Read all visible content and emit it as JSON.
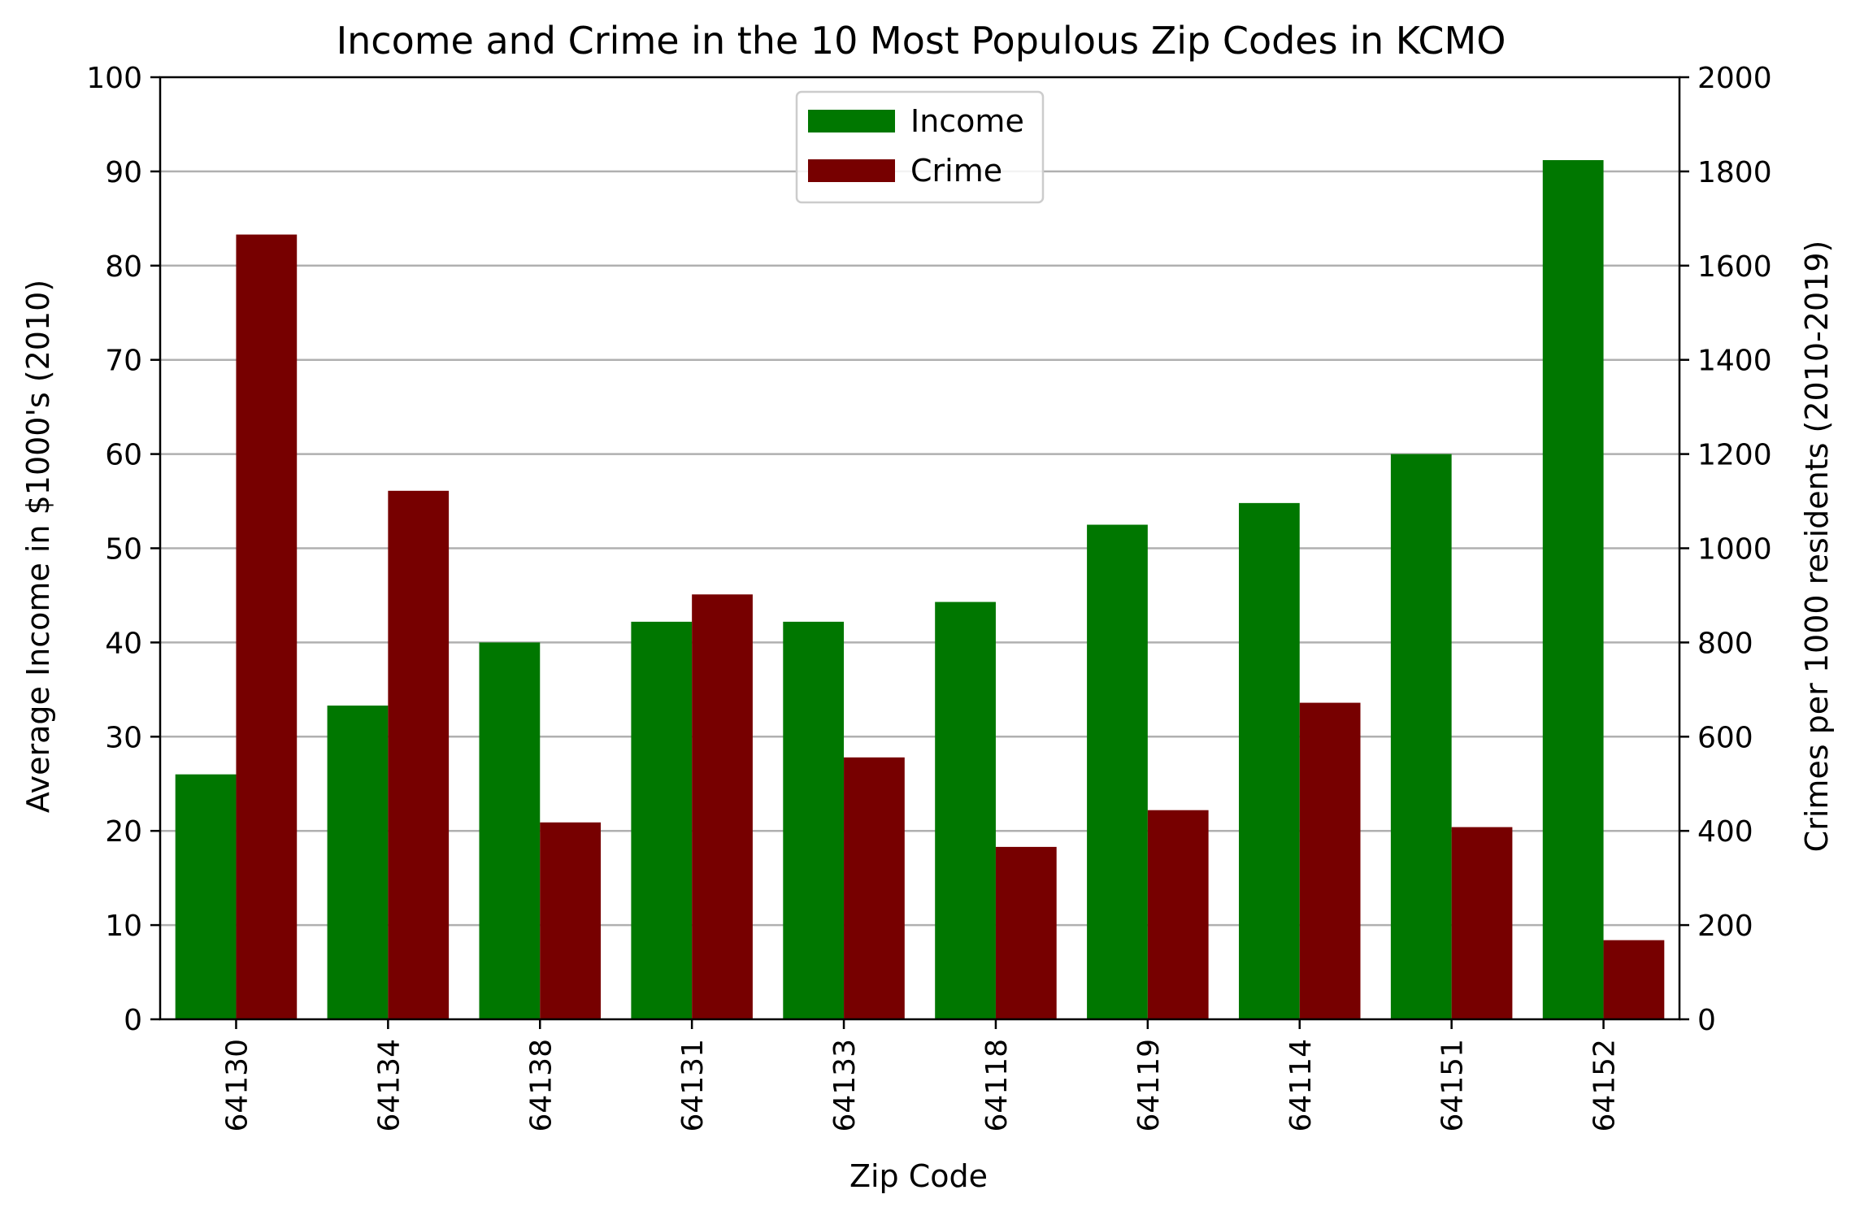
{
  "chart_data": {
    "type": "bar",
    "title": "Income and Crime in the 10 Most Populous Zip Codes in KCMO",
    "xlabel": "Zip Code",
    "ylabel_left": "Average Income in $1000's (2010)",
    "ylabel_right": "Crimes per 1000 residents (2010-2019)",
    "categories": [
      "64130",
      "64134",
      "64138",
      "64131",
      "64133",
      "64118",
      "64119",
      "64114",
      "64151",
      "64152"
    ],
    "ylim_left": [
      0,
      100
    ],
    "ylim_right": [
      0,
      2000
    ],
    "yticks_left": [
      "0",
      "10",
      "20",
      "30",
      "40",
      "50",
      "60",
      "70",
      "80",
      "90",
      "100"
    ],
    "yticks_right": [
      "0",
      "200",
      "400",
      "600",
      "800",
      "1000",
      "1200",
      "1400",
      "1600",
      "1800",
      "2000"
    ],
    "grid": true,
    "legend_position": "upper-center",
    "series": [
      {
        "name": "Income",
        "axis": "left",
        "color": "#007700",
        "values": [
          26.0,
          33.3,
          40.0,
          42.2,
          42.2,
          44.3,
          52.5,
          54.8,
          60.0,
          91.2
        ]
      },
      {
        "name": "Crime",
        "axis": "right",
        "color": "#770000",
        "values": [
          1666,
          1122,
          418,
          902,
          556,
          366,
          444,
          672,
          408,
          168
        ]
      }
    ]
  }
}
